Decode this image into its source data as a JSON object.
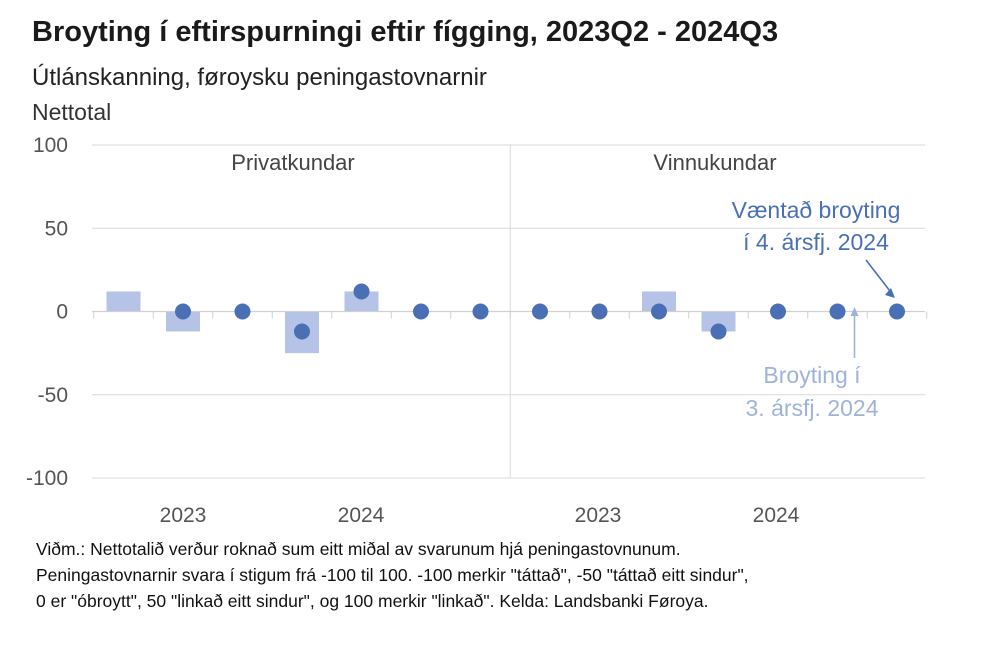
{
  "chart_data": {
    "type": "bar",
    "title": "Broyting í eftirspurningi eftir fígging, 2023Q2 - 2024Q3",
    "subtitle": "Útlánskanning, føroysku peningastovnarnir",
    "ylabel": "Nettotal",
    "ylim": [
      -100,
      100
    ],
    "yticks": [
      "100",
      "50",
      "0",
      "-50",
      "-100"
    ],
    "grid": true,
    "panels": [
      {
        "name": "Privatkundar",
        "year_labels": [
          "2023",
          "2024"
        ],
        "bars": [
          12,
          -12,
          0,
          -25,
          12,
          0,
          0
        ],
        "points": [
          null,
          0,
          0,
          -12,
          12,
          0,
          0
        ]
      },
      {
        "name": "Vinnukundar",
        "year_labels": [
          "2023",
          "2024"
        ],
        "bars": [
          0,
          0,
          12,
          -12,
          0,
          0,
          0
        ],
        "points": [
          0,
          0,
          0,
          -12,
          0,
          0,
          0
        ]
      }
    ],
    "annotations": {
      "expected": [
        "Væntað broyting",
        "í 4. ársfj. 2024"
      ],
      "actual": [
        "Broyting í",
        "3. ársfj. 2024"
      ]
    }
  },
  "note_lines": [
    "Viðm.: Nettotalið verður roknað sum eitt miðal av svarunum hjá peningastovnunum.",
    "Peningastovnarnir svara í stigum frá -100 til 100. -100 merkir \"táttað\", -50 \"táttað eitt sindur\",",
    "0 er \"óbroytt\", 50 \"linkað eitt sindur\", og 100 merkir \"linkað\". Kelda: Landsbanki Føroya."
  ],
  "colors": {
    "bar": "#b4c3e6",
    "point": "#4a6fb5",
    "grid": "#d9d9d9"
  }
}
